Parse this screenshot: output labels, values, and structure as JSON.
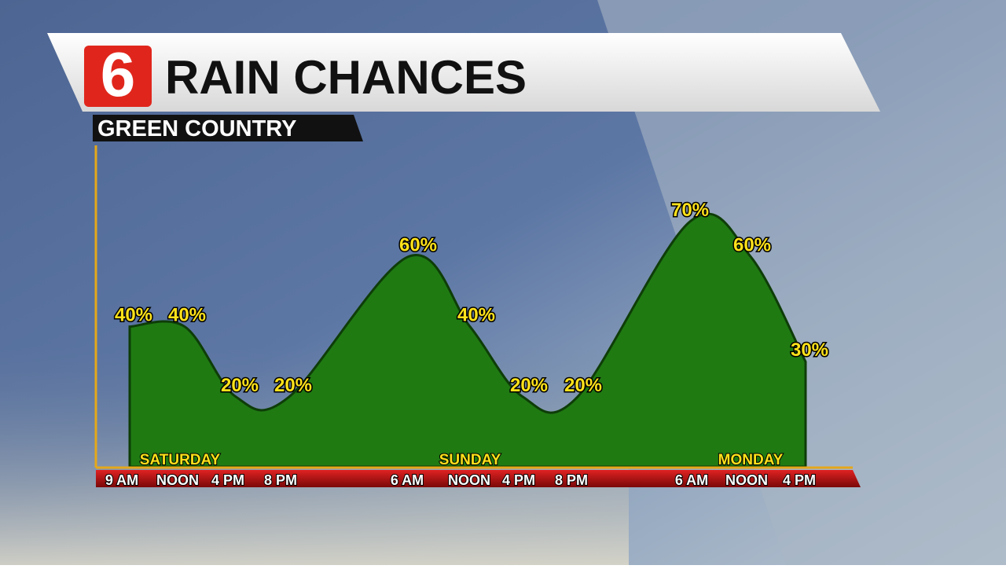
{
  "chart_data": {
    "type": "area",
    "title": "RAIN CHANCES",
    "subtitle": "GREEN COUNTRY",
    "logo": "6",
    "categories": [
      "9 AM",
      "NOON",
      "4 PM",
      "8 PM",
      "6 AM",
      "NOON",
      "4 PM",
      "8 PM",
      "6 AM",
      "NOON",
      "4 PM"
    ],
    "values": [
      40,
      40,
      20,
      20,
      60,
      40,
      20,
      20,
      70,
      60,
      30
    ],
    "value_labels": [
      "40%",
      "40%",
      "20%",
      "20%",
      "60%",
      "40%",
      "20%",
      "20%",
      "70%",
      "60%",
      "30%"
    ],
    "days": [
      "SATURDAY",
      "SUNDAY",
      "MONDAY"
    ],
    "color": "#1f7a12"
  }
}
